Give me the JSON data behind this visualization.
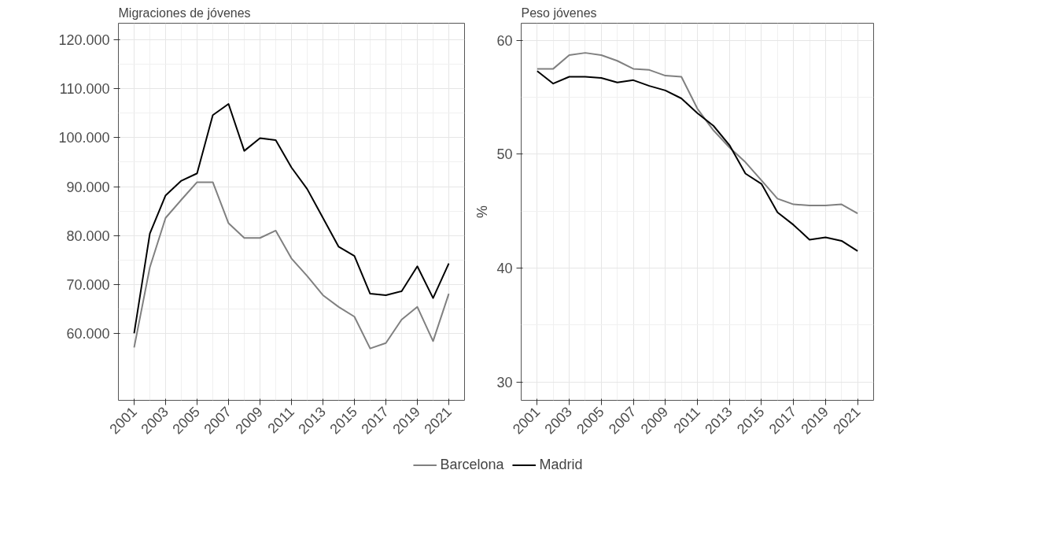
{
  "chart_data": [
    {
      "type": "line",
      "title": "Migraciones de jóvenes",
      "x": [
        2001,
        2002,
        2003,
        2004,
        2005,
        2006,
        2007,
        2008,
        2009,
        2010,
        2011,
        2012,
        2013,
        2014,
        2015,
        2016,
        2017,
        2018,
        2019,
        2020,
        2021
      ],
      "series": [
        {
          "name": "Barcelona",
          "color": "#808080",
          "values": [
            57100,
            73500,
            83600,
            87300,
            90900,
            90900,
            82500,
            79500,
            79500,
            81000,
            75300,
            71700,
            67800,
            65400,
            63400,
            56900,
            58000,
            62800,
            65400,
            58400,
            68100
          ]
        },
        {
          "name": "Madrid",
          "color": "#000000",
          "values": [
            60000,
            80400,
            88200,
            91200,
            92700,
            104600,
            106900,
            97300,
            99900,
            99500,
            93900,
            89500,
            83600,
            77700,
            75800,
            68100,
            67800,
            68600,
            73700,
            67200,
            74300
          ]
        }
      ],
      "xlim": [
        2000,
        2022
      ],
      "xticks": [
        2001,
        2003,
        2005,
        2007,
        2009,
        2011,
        2013,
        2015,
        2017,
        2019,
        2021
      ],
      "ylim": [
        46300,
        123400
      ],
      "yticks": [
        {
          "value": 60000,
          "label": "60.000"
        },
        {
          "value": 70000,
          "label": "70.000"
        },
        {
          "value": 80000,
          "label": "80.000"
        },
        {
          "value": 90000,
          "label": "90.000"
        },
        {
          "value": 100000,
          "label": "100.000"
        },
        {
          "value": 110000,
          "label": "110.000"
        },
        {
          "value": 120000,
          "label": "120.000"
        }
      ],
      "grid": true,
      "legend": "bottom"
    },
    {
      "type": "line",
      "title": "Peso jóvenes",
      "ylabel": "%",
      "x": [
        2001,
        2002,
        2003,
        2004,
        2005,
        2006,
        2007,
        2008,
        2009,
        2010,
        2011,
        2012,
        2013,
        2014,
        2015,
        2016,
        2017,
        2018,
        2019,
        2020,
        2021
      ],
      "series": [
        {
          "color": "#808080",
          "values": [
            57.5,
            57.5,
            58.7,
            58.9,
            58.7,
            58.2,
            57.5,
            57.4,
            56.9,
            56.8,
            54.0,
            52.1,
            50.6,
            49.3,
            47.7,
            46.1,
            45.6,
            45.5,
            45.5,
            45.6,
            44.8
          ]
        },
        {
          "color": "#000000",
          "values": [
            57.3,
            56.2,
            56.8,
            56.8,
            56.7,
            56.3,
            56.5,
            56.0,
            55.6,
            54.9,
            53.6,
            52.5,
            50.8,
            48.3,
            47.4,
            44.9,
            43.8,
            42.5,
            42.7,
            42.4,
            41.5
          ]
        }
      ],
      "xlim": [
        2000,
        2022
      ],
      "xticks": [
        2001,
        2003,
        2005,
        2007,
        2009,
        2011,
        2013,
        2015,
        2017,
        2019,
        2021
      ],
      "ylim": [
        28.4,
        61.5
      ],
      "yticks": [
        30,
        40,
        50,
        60
      ],
      "grid": true
    }
  ]
}
